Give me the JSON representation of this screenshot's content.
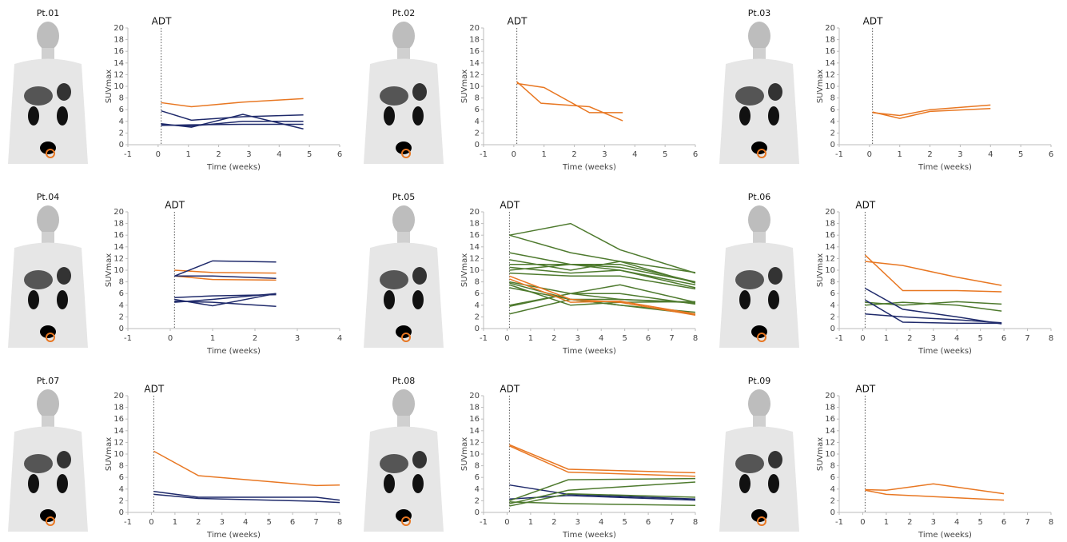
{
  "chart_data": [
    {
      "type": "line",
      "title": "Pt.01",
      "xlabel": "Time (weeks)",
      "ylabel": "SUVmax",
      "annotations": [
        {
          "text": "ADT",
          "x": 0.1
        }
      ],
      "xlim": [
        -1,
        6
      ],
      "xticks": [
        -1,
        0,
        1,
        2,
        3,
        4,
        5,
        6
      ],
      "ylim": [
        0,
        20
      ],
      "yticks": [
        0,
        2,
        4,
        6,
        8,
        10,
        12,
        14,
        16,
        18,
        20
      ],
      "series": [
        {
          "color": "#E87722",
          "x": [
            0.1,
            1.1,
            2.8,
            4.8
          ],
          "values": [
            7.2,
            6.5,
            7.3,
            7.9
          ]
        },
        {
          "color": "#1F2A6B",
          "x": [
            0.1,
            1.1,
            2.8,
            4.8
          ],
          "values": [
            5.8,
            4.2,
            4.8,
            5.1
          ]
        },
        {
          "color": "#1F2A6B",
          "x": [
            0.1,
            1.1,
            2.8,
            4.8
          ],
          "values": [
            3.6,
            3.0,
            5.2,
            2.7
          ]
        },
        {
          "color": "#1F2A6B",
          "x": [
            0.1,
            1.1,
            2.8,
            4.8
          ],
          "values": [
            3.4,
            3.2,
            4.0,
            4.0
          ]
        },
        {
          "color": "#1F2A6B",
          "x": [
            0.1,
            1.1,
            2.8,
            4.8
          ],
          "values": [
            3.3,
            3.4,
            3.5,
            3.5
          ]
        }
      ]
    },
    {
      "type": "line",
      "title": "Pt.02",
      "xlabel": "Time (weeks)",
      "ylabel": "SUVmax",
      "annotations": [
        {
          "text": "ADT",
          "x": 0.1
        }
      ],
      "xlim": [
        -1,
        6
      ],
      "xticks": [
        -1,
        0,
        1,
        2,
        3,
        4,
        5,
        6
      ],
      "ylim": [
        0,
        20
      ],
      "yticks": [
        0,
        2,
        4,
        6,
        8,
        10,
        12,
        14,
        16,
        18,
        20
      ],
      "series": [
        {
          "color": "#E87722",
          "x": [
            0.1,
            0.9,
            2.5,
            3.6
          ],
          "values": [
            10.8,
            7.1,
            6.5,
            4.1
          ]
        },
        {
          "color": "#E87722",
          "x": [
            0.1,
            1.0,
            2.5,
            3.6
          ],
          "values": [
            10.5,
            9.8,
            5.5,
            5.5
          ]
        }
      ]
    },
    {
      "type": "line",
      "title": "Pt.03",
      "xlabel": "Time (weeks)",
      "ylabel": "SUVmax",
      "annotations": [
        {
          "text": "ADT",
          "x": 0.1
        }
      ],
      "xlim": [
        -1,
        6
      ],
      "xticks": [
        -1,
        0,
        1,
        2,
        3,
        4,
        5,
        6
      ],
      "ylim": [
        0,
        20
      ],
      "yticks": [
        0,
        2,
        4,
        6,
        8,
        10,
        12,
        14,
        16,
        18,
        20
      ],
      "series": [
        {
          "color": "#E87722",
          "x": [
            0.1,
            1,
            2,
            4
          ],
          "values": [
            5.6,
            4.5,
            5.7,
            6.2
          ]
        },
        {
          "color": "#E87722",
          "x": [
            0.1,
            1,
            2,
            4
          ],
          "values": [
            5.5,
            5.0,
            6.0,
            6.8
          ]
        }
      ]
    },
    {
      "type": "line",
      "title": "Pt.04",
      "xlabel": "Time (weeks)",
      "ylabel": "SUVmax",
      "annotations": [
        {
          "text": "ADT",
          "x": 0.1
        }
      ],
      "xlim": [
        -1,
        4
      ],
      "xticks": [
        -1,
        0,
        1,
        2,
        3,
        4
      ],
      "ylim": [
        0,
        20
      ],
      "yticks": [
        0,
        2,
        4,
        6,
        8,
        10,
        12,
        14,
        16,
        18,
        20
      ],
      "series": [
        {
          "color": "#E87722",
          "x": [
            0.1,
            1,
            2.5
          ],
          "values": [
            10,
            9.6,
            9.5
          ]
        },
        {
          "color": "#E87722",
          "x": [
            0.1,
            1,
            2.5
          ],
          "values": [
            9,
            8.4,
            8.3
          ]
        },
        {
          "color": "#1F2A6B",
          "x": [
            0.1,
            1,
            2.5
          ],
          "values": [
            9,
            11.6,
            11.4
          ]
        },
        {
          "color": "#1F2A6B",
          "x": [
            0.1,
            1,
            2.5
          ],
          "values": [
            9,
            9,
            8.6
          ]
        },
        {
          "color": "#1F2A6B",
          "x": [
            0.1,
            1,
            2.5
          ],
          "values": [
            5.3,
            5.6,
            5.8
          ]
        },
        {
          "color": "#1F2A6B",
          "x": [
            0.1,
            1,
            2.5
          ],
          "values": [
            5,
            3.9,
            6
          ]
        },
        {
          "color": "#1F2A6B",
          "x": [
            0.1,
            1,
            2.5
          ],
          "values": [
            4.7,
            4.5,
            3.8
          ]
        },
        {
          "color": "#1F2A6B",
          "x": [
            0.1,
            1,
            2.5
          ],
          "values": [
            4.5,
            5,
            6
          ]
        }
      ]
    },
    {
      "type": "line",
      "title": "Pt.05",
      "xlabel": "Time (weeks)",
      "ylabel": "SUVmax",
      "annotations": [
        {
          "text": "ADT",
          "x": 0.1
        }
      ],
      "xlim": [
        -1,
        8
      ],
      "xticks": [
        -1,
        0,
        1,
        2,
        3,
        4,
        5,
        6,
        7,
        8
      ],
      "ylim": [
        0,
        20
      ],
      "yticks": [
        0,
        2,
        4,
        6,
        8,
        10,
        12,
        14,
        16,
        18,
        20
      ],
      "series": [
        {
          "color": "#4E7A2E",
          "x": [
            0.1,
            2.7,
            4.8,
            8
          ],
          "values": [
            16,
            18,
            13.5,
            9.5
          ]
        },
        {
          "color": "#4E7A2E",
          "x": [
            0.1,
            2.7,
            4.8,
            8
          ],
          "values": [
            16,
            13,
            11.5,
            9.6
          ]
        },
        {
          "color": "#4E7A2E",
          "x": [
            0.1,
            2.7,
            4.8,
            8
          ],
          "values": [
            13,
            11,
            10.5,
            8
          ]
        },
        {
          "color": "#4E7A2E",
          "x": [
            0.1,
            2.7,
            4.8,
            8
          ],
          "values": [
            11.8,
            10,
            11.5,
            7.8
          ]
        },
        {
          "color": "#4E7A2E",
          "x": [
            0.1,
            2.7,
            4.8,
            8
          ],
          "values": [
            11,
            11,
            11,
            8
          ]
        },
        {
          "color": "#4E7A2E",
          "x": [
            0.1,
            2.7,
            4.8,
            8
          ],
          "values": [
            10.5,
            9.5,
            10,
            7.5
          ]
        },
        {
          "color": "#4E7A2E",
          "x": [
            0.1,
            2.7,
            4.8,
            8
          ],
          "values": [
            10,
            11,
            10,
            7
          ]
        },
        {
          "color": "#4E7A2E",
          "x": [
            0.1,
            2.7,
            4.8,
            8
          ],
          "values": [
            9.5,
            9,
            9,
            6.8
          ]
        },
        {
          "color": "#4E7A2E",
          "x": [
            0.1,
            2.7,
            4.8,
            8
          ],
          "values": [
            8,
            6,
            7.5,
            4.5
          ]
        },
        {
          "color": "#4E7A2E",
          "x": [
            0.1,
            2.7,
            4.8,
            8
          ],
          "values": [
            7.8,
            5,
            5,
            4.4
          ]
        },
        {
          "color": "#4E7A2E",
          "x": [
            0.1,
            2.7,
            4.8,
            8
          ],
          "values": [
            7.5,
            4,
            4.5,
            4.6
          ]
        },
        {
          "color": "#4E7A2E",
          "x": [
            0.1,
            2.7,
            4.8,
            8
          ],
          "values": [
            7,
            5,
            4,
            2.8
          ]
        },
        {
          "color": "#4E7A2E",
          "x": [
            0.1,
            2.7,
            4.8,
            8
          ],
          "values": [
            4,
            6,
            6,
            4.2
          ]
        },
        {
          "color": "#4E7A2E",
          "x": [
            0.1,
            2.7,
            4.8,
            8
          ],
          "values": [
            3.8,
            6,
            5,
            4.5
          ]
        },
        {
          "color": "#4E7A2E",
          "x": [
            0.1,
            2.7,
            4.8,
            8
          ],
          "values": [
            2.5,
            5,
            4,
            2.5
          ]
        },
        {
          "color": "#E87722",
          "x": [
            0.1,
            2.7,
            4.8,
            8
          ],
          "values": [
            9,
            5,
            4.5,
            2.3
          ]
        },
        {
          "color": "#E87722",
          "x": [
            0.1,
            2.7,
            4.8,
            8
          ],
          "values": [
            8.5,
            4.5,
            4.7,
            2.5
          ]
        }
      ]
    },
    {
      "type": "line",
      "title": "Pt.06",
      "xlabel": "Time (weeks)",
      "ylabel": "SUVmax",
      "annotations": [
        {
          "text": "ADT",
          "x": 0.1
        }
      ],
      "xlim": [
        -1,
        8
      ],
      "xticks": [
        -1,
        0,
        1,
        2,
        3,
        4,
        5,
        6,
        7,
        8
      ],
      "ylim": [
        0,
        20
      ],
      "yticks": [
        0,
        2,
        4,
        6,
        8,
        10,
        12,
        14,
        16,
        18,
        20
      ],
      "series": [
        {
          "color": "#E87722",
          "x": [
            0.1,
            1.7,
            4,
            5.9
          ],
          "values": [
            12.6,
            6.5,
            6.5,
            6.3
          ]
        },
        {
          "color": "#E87722",
          "x": [
            0.1,
            1.7,
            4,
            5.9
          ],
          "values": [
            11.5,
            10.8,
            8.8,
            7.4
          ]
        },
        {
          "color": "#4E7A2E",
          "x": [
            0.1,
            1.7,
            4,
            5.9
          ],
          "values": [
            4.5,
            4,
            4.6,
            4.2
          ]
        },
        {
          "color": "#4E7A2E",
          "x": [
            0.1,
            1.7,
            4,
            5.9
          ],
          "values": [
            4,
            4.5,
            4,
            3
          ]
        },
        {
          "color": "#1F2A6B",
          "x": [
            0.1,
            1.7,
            4,
            5.9
          ],
          "values": [
            6.9,
            3.3,
            2,
            0.8
          ]
        },
        {
          "color": "#1F2A6B",
          "x": [
            0.1,
            1.7,
            4,
            5.9
          ],
          "values": [
            4.9,
            1.1,
            0.9,
            0.9
          ]
        },
        {
          "color": "#1F2A6B",
          "x": [
            0.1,
            1.7,
            4,
            5.9
          ],
          "values": [
            2.5,
            2,
            1.5,
            1
          ]
        }
      ]
    },
    {
      "type": "line",
      "title": "Pt.07",
      "xlabel": "Time (weeks)",
      "ylabel": "SUVmax",
      "annotations": [
        {
          "text": "ADT",
          "x": 0.1
        }
      ],
      "xlim": [
        -1,
        8
      ],
      "xticks": [
        -1,
        0,
        1,
        2,
        3,
        4,
        5,
        6,
        7,
        8
      ],
      "ylim": [
        0,
        20
      ],
      "yticks": [
        0,
        2,
        4,
        6,
        8,
        10,
        12,
        14,
        16,
        18,
        20
      ],
      "series": [
        {
          "color": "#E87722",
          "x": [
            0.1,
            2,
            7,
            8
          ],
          "values": [
            10.5,
            6.3,
            4.6,
            4.7
          ]
        },
        {
          "color": "#1F2A6B",
          "x": [
            0.1,
            2,
            7,
            8
          ],
          "values": [
            3.6,
            2.6,
            2.6,
            2.1
          ]
        },
        {
          "color": "#1F2A6B",
          "x": [
            0.1,
            2,
            7,
            8
          ],
          "values": [
            3.1,
            2.4,
            1.9,
            1.7
          ]
        }
      ]
    },
    {
      "type": "line",
      "title": "Pt.08",
      "xlabel": "Time (weeks)",
      "ylabel": "SUVmax",
      "annotations": [
        {
          "text": "ADT",
          "x": 0.1
        }
      ],
      "xlim": [
        -1,
        8
      ],
      "xticks": [
        -1,
        0,
        1,
        2,
        3,
        4,
        5,
        6,
        7,
        8
      ],
      "ylim": [
        0,
        20
      ],
      "yticks": [
        0,
        2,
        4,
        6,
        8,
        10,
        12,
        14,
        16,
        18,
        20
      ],
      "series": [
        {
          "color": "#E87722",
          "x": [
            0.1,
            2.6,
            8
          ],
          "values": [
            11.6,
            7.4,
            6.8
          ]
        },
        {
          "color": "#E87722",
          "x": [
            0.1,
            2.6,
            8
          ],
          "values": [
            11.4,
            6.9,
            6.2
          ]
        },
        {
          "color": "#1F2A6B",
          "x": [
            0.1,
            2.6,
            8
          ],
          "values": [
            4.7,
            3.1,
            2.3
          ]
        },
        {
          "color": "#1F2A6B",
          "x": [
            0.1,
            2.6,
            8
          ],
          "values": [
            2.3,
            2.9,
            2.1
          ]
        },
        {
          "color": "#4E7A2E",
          "x": [
            0.1,
            2.6,
            8
          ],
          "values": [
            2,
            5.6,
            5.8
          ]
        },
        {
          "color": "#4E7A2E",
          "x": [
            0.1,
            2.6,
            8
          ],
          "values": [
            1.5,
            3.8,
            5.2
          ]
        },
        {
          "color": "#4E7A2E",
          "x": [
            0.1,
            2.6,
            8
          ],
          "values": [
            1.1,
            3.2,
            2.6
          ]
        },
        {
          "color": "#4E7A2E",
          "x": [
            0.1,
            2.6,
            8
          ],
          "values": [
            1.8,
            1.5,
            1.2
          ]
        }
      ]
    },
    {
      "type": "line",
      "title": "Pt.09",
      "xlabel": "Time (weeks)",
      "ylabel": "SUVmax",
      "annotations": [
        {
          "text": "ADT",
          "x": 0.1
        }
      ],
      "xlim": [
        -1,
        8
      ],
      "xticks": [
        -1,
        0,
        1,
        2,
        3,
        4,
        5,
        6,
        7,
        8
      ],
      "ylim": [
        0,
        20
      ],
      "yticks": [
        0,
        2,
        4,
        6,
        8,
        10,
        12,
        14,
        16,
        18,
        20
      ],
      "series": [
        {
          "color": "#E87722",
          "x": [
            0.1,
            1,
            3,
            6
          ],
          "values": [
            3.9,
            3.8,
            4.9,
            3.2
          ]
        },
        {
          "color": "#E87722",
          "x": [
            0.1,
            1,
            3,
            6
          ],
          "values": [
            3.8,
            3.1,
            2.7,
            2.1
          ]
        }
      ]
    }
  ]
}
